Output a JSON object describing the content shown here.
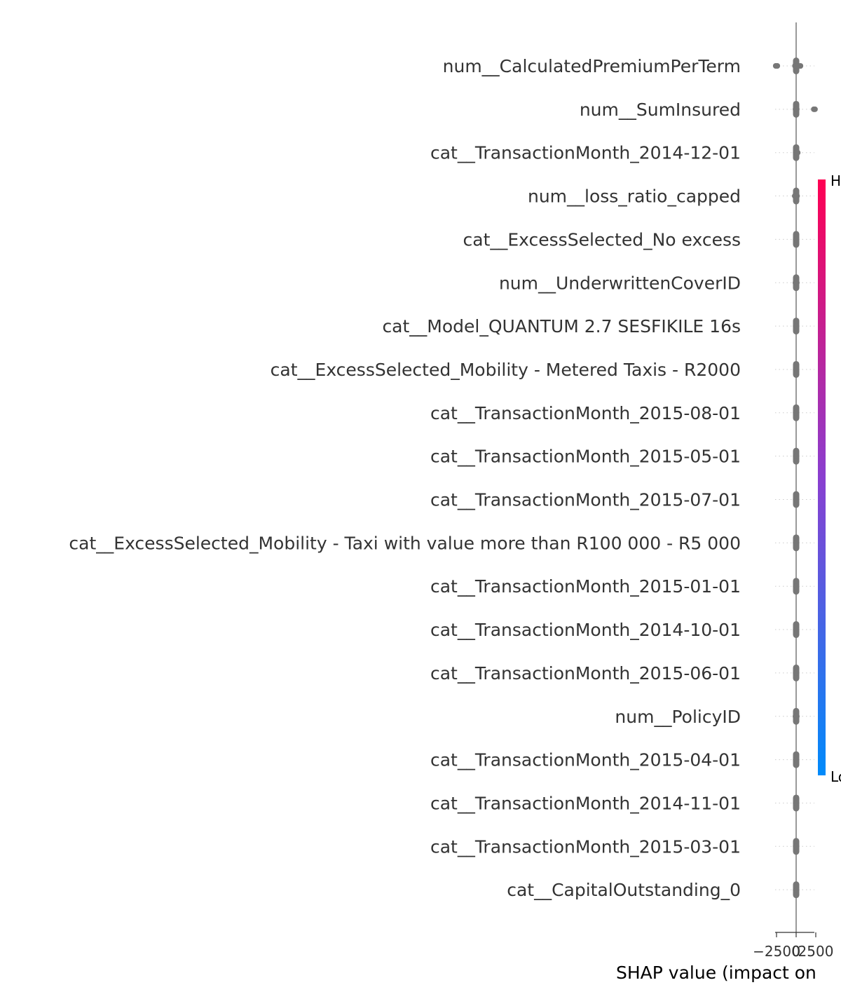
{
  "chart_data": {
    "type": "scatter",
    "subtype": "shap-beeswarm-summary",
    "title": "",
    "xlabel": "SHAP value (impact on",
    "ylabel": "",
    "xlim": [
      -3200,
      3200
    ],
    "xticks": [
      {
        "value": -2500,
        "label": "−2500"
      },
      {
        "value": 0,
        "label": "0"
      },
      {
        "value": 2500,
        "label": "2500"
      }
    ],
    "grid": false,
    "point_color": "#777777",
    "colorbar": {
      "high_label": "H",
      "low_label": "Lo",
      "high_color": "#ff0052",
      "mid_color": "#8a3fd0",
      "low_color": "#008bfb"
    },
    "features": [
      {
        "name": "num__CalculatedPremiumPerTerm",
        "x": [
          -2600,
          -2400,
          -150,
          0,
          150,
          300,
          550
        ]
      },
      {
        "name": "num__SumInsured",
        "x": [
          -80,
          0,
          80,
          2250,
          2400
        ]
      },
      {
        "name": "cat__TransactionMonth_2014-12-01",
        "x": [
          -60,
          0,
          60,
          200
        ]
      },
      {
        "name": "num__loss_ratio_capped",
        "x": [
          -180,
          -60,
          0,
          60,
          120
        ]
      },
      {
        "name": "cat__ExcessSelected_No excess",
        "x": [
          -60,
          0,
          60
        ]
      },
      {
        "name": "num__UnderwrittenCoverID",
        "x": [
          -90,
          0,
          90
        ]
      },
      {
        "name": "cat__Model_QUANTUM 2.7 SESFIKILE 16s",
        "x": [
          -60,
          0,
          60
        ]
      },
      {
        "name": "cat__ExcessSelected_Mobility - Metered Taxis - R2000",
        "x": [
          -60,
          0,
          60
        ]
      },
      {
        "name": "cat__TransactionMonth_2015-08-01",
        "x": [
          -60,
          0,
          60
        ]
      },
      {
        "name": "cat__TransactionMonth_2015-05-01",
        "x": [
          -60,
          0,
          60
        ]
      },
      {
        "name": "cat__TransactionMonth_2015-07-01",
        "x": [
          -60,
          0,
          60
        ]
      },
      {
        "name": "cat__ExcessSelected_Mobility - Taxi with value more than R100 000 - R5 000",
        "x": [
          -60,
          0,
          60
        ]
      },
      {
        "name": "cat__TransactionMonth_2015-01-01",
        "x": [
          -60,
          0,
          60
        ]
      },
      {
        "name": "cat__TransactionMonth_2014-10-01",
        "x": [
          -60,
          0,
          60
        ]
      },
      {
        "name": "cat__TransactionMonth_2015-06-01",
        "x": [
          -60,
          0,
          60
        ]
      },
      {
        "name": "num__PolicyID",
        "x": [
          -90,
          0,
          90
        ]
      },
      {
        "name": "cat__TransactionMonth_2015-04-01",
        "x": [
          -60,
          0,
          60
        ]
      },
      {
        "name": "cat__TransactionMonth_2014-11-01",
        "x": [
          -60,
          0,
          60
        ]
      },
      {
        "name": "cat__TransactionMonth_2015-03-01",
        "x": [
          -60,
          0,
          60
        ]
      },
      {
        "name": "cat__CapitalOutstanding_0",
        "x": [
          -60,
          0,
          60
        ]
      }
    ]
  }
}
